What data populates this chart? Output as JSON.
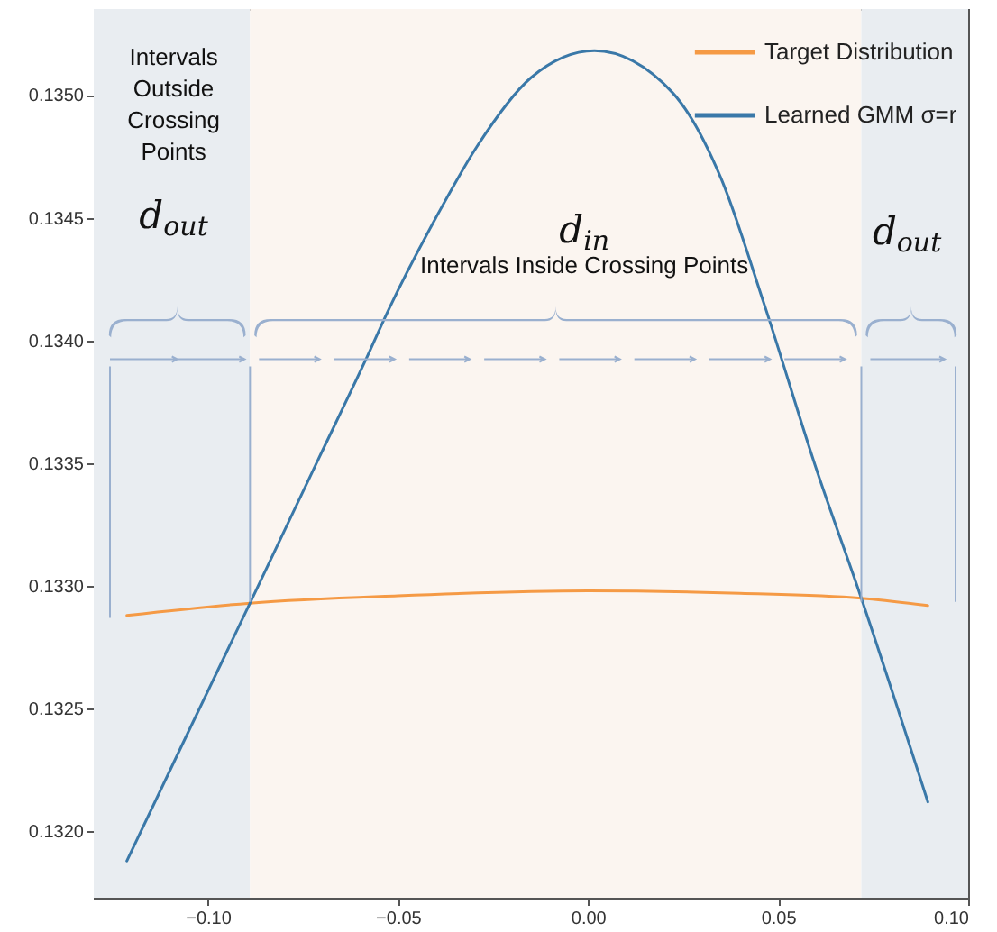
{
  "chart_data": {
    "type": "line",
    "xlim": [
      -0.13,
      0.1
    ],
    "ylim": [
      0.13173,
      0.13535
    ],
    "xticks": [
      {
        "value": -0.1,
        "label": "−0.10"
      },
      {
        "value": -0.05,
        "label": "−0.05"
      },
      {
        "value": 0,
        "label": "0.00"
      },
      {
        "value": 0.05,
        "label": "0.05"
      },
      {
        "value": 0.1,
        "label": "0.10"
      }
    ],
    "yticks": [
      {
        "value": 0.132,
        "label": "0.1320"
      },
      {
        "value": 0.1325,
        "label": "0.1325"
      },
      {
        "value": 0.133,
        "label": "0.1330"
      },
      {
        "value": 0.1335,
        "label": "0.1335"
      },
      {
        "value": 0.134,
        "label": "0.1340"
      },
      {
        "value": 0.1345,
        "label": "0.1345"
      },
      {
        "value": 0.135,
        "label": "0.1350"
      }
    ],
    "series": [
      {
        "name": "Target Distribution",
        "color": "#f59a45",
        "x": [
          -0.1213,
          -0.0889,
          -0.05,
          0,
          0.04,
          0.0719,
          0.0894
        ],
        "values": [
          0.13288,
          0.13293,
          0.13296,
          0.13298,
          0.13297,
          0.13295,
          0.13292
        ]
      },
      {
        "name": "Learned GMM σ=r",
        "color": "#3a78a8",
        "x": [
          -0.1213,
          -0.1053,
          -0.0889,
          -0.0708,
          -0.0588,
          -0.0523,
          -0.04,
          -0.0292,
          -0.015,
          0.0017,
          0.0222,
          0.035,
          0.0463,
          0.0602,
          0.0719,
          0.0894
        ],
        "values": [
          0.13188,
          0.1324,
          0.13293,
          0.13352,
          0.13391,
          0.13413,
          0.1345,
          0.13479,
          0.13507,
          0.13518,
          0.13501,
          0.13466,
          0.13415,
          0.13347,
          0.13295,
          0.13212
        ]
      }
    ],
    "bands": [
      {
        "axis": "x",
        "from": -0.13,
        "to": -0.0889,
        "color": "#e9edf1"
      },
      {
        "axis": "x",
        "from": -0.0889,
        "to": 0.0719,
        "color": "#fbf5f0"
      },
      {
        "axis": "x",
        "from": 0.0719,
        "to": 0.1,
        "color": "#e9edf1"
      }
    ],
    "annotations": [
      "Intervals Outside Crossing Points",
      "d$_{out}$",
      "d$_{in}$",
      "Intervals Inside Crossing Points",
      "d$_{out}$"
    ],
    "legend": "top right",
    "grid": false,
    "marker": "none",
    "line_style": "solid"
  }
}
